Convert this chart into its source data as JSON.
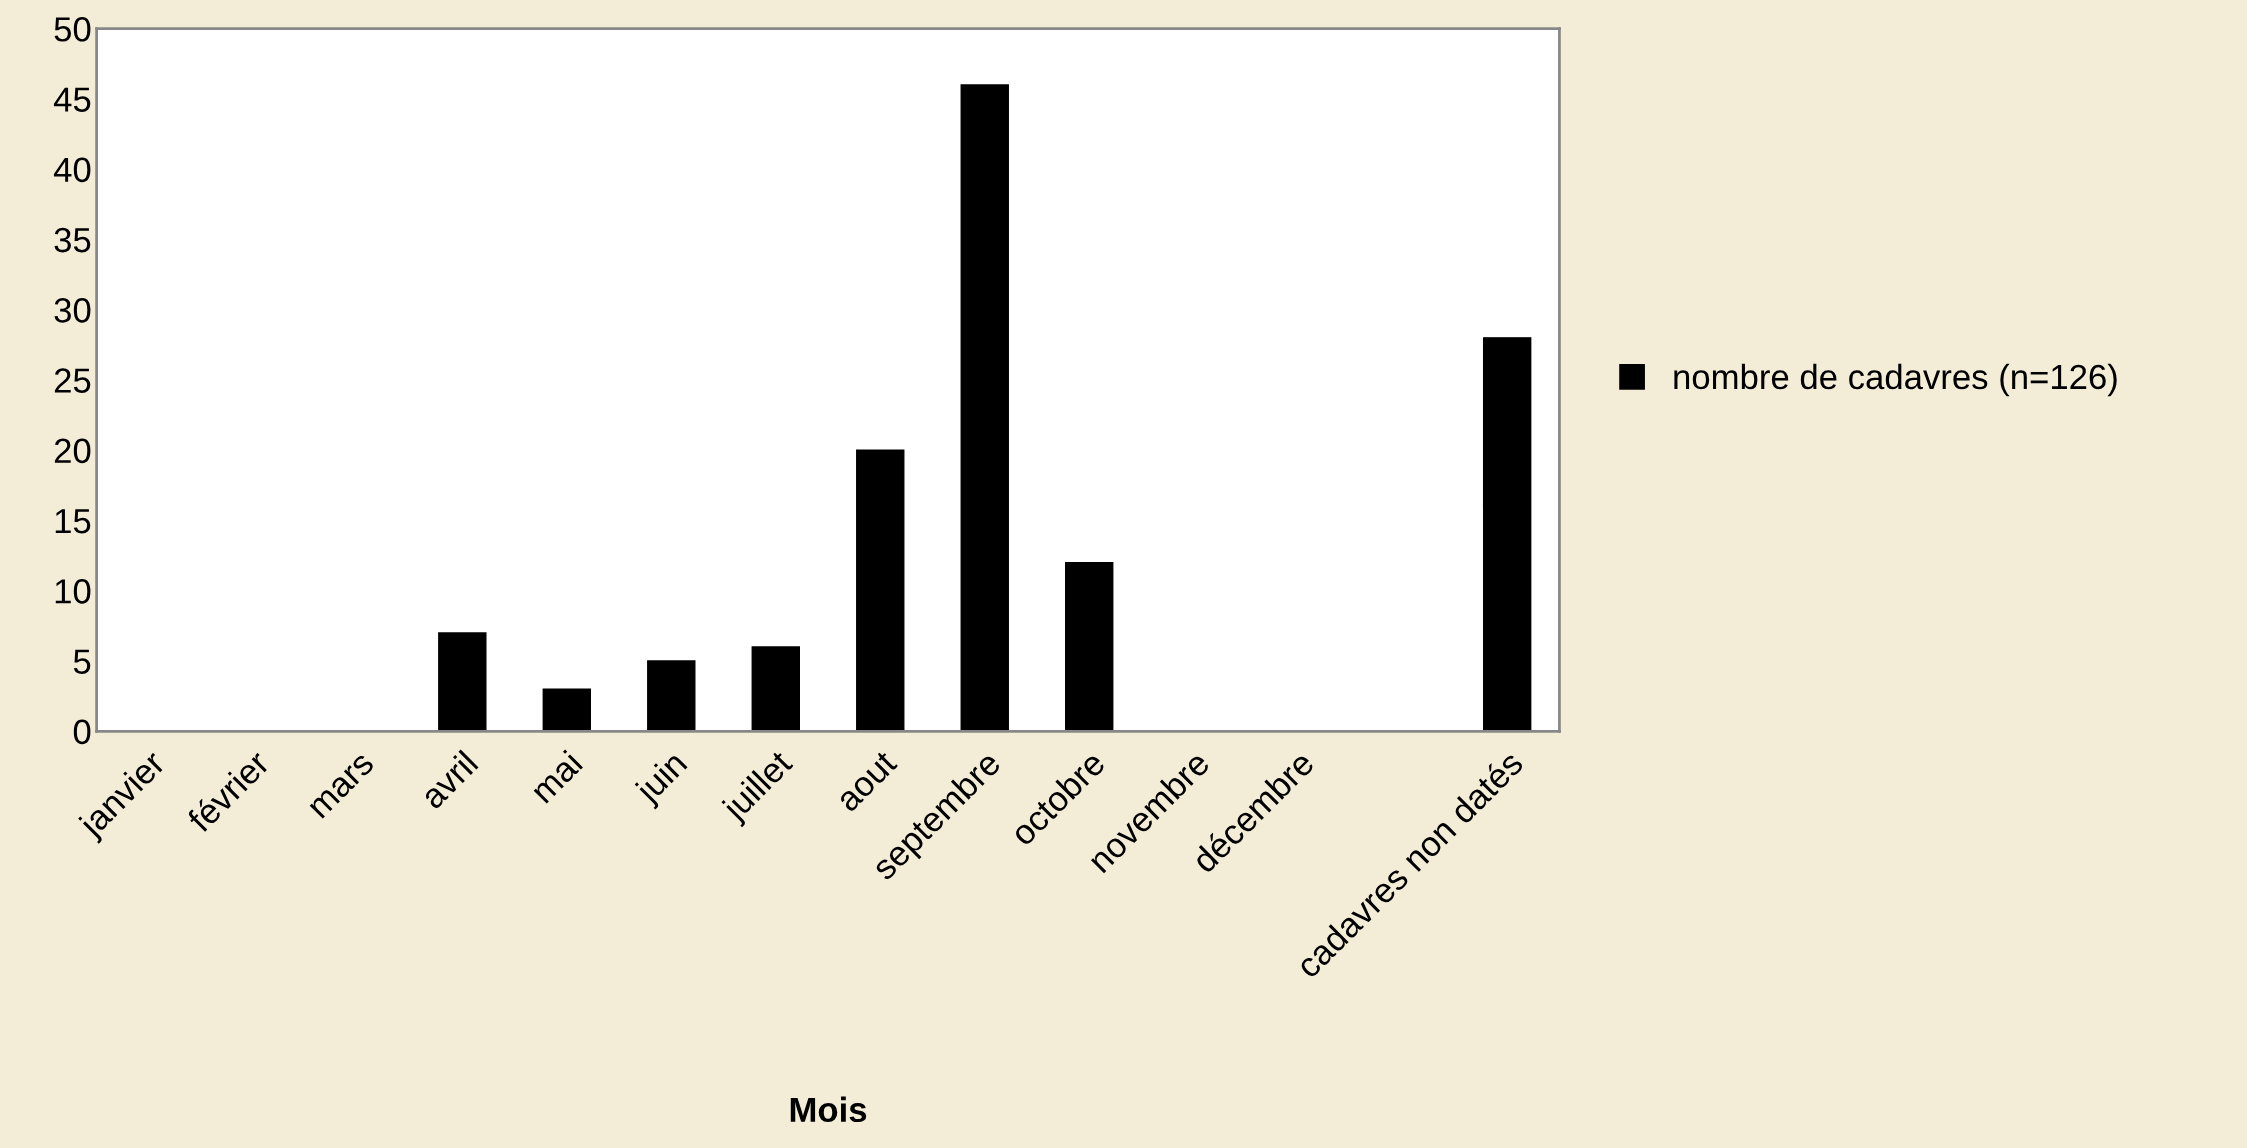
{
  "chart_data": {
    "type": "bar",
    "xlabel": "Mois",
    "categories": [
      "janvier",
      "février",
      "mars",
      "avril",
      "mai",
      "juin",
      "juillet",
      "aout",
      "septembre",
      "octobre",
      "novembre",
      "décembre",
      null,
      "cadavres non datés"
    ],
    "series": [
      {
        "name": "nombre de cadavres (n=126)",
        "color": "#000000",
        "values": [
          0,
          0,
          0,
          7,
          3,
          5,
          6,
          20,
          46,
          12,
          0,
          0,
          null,
          28
        ]
      }
    ],
    "ylim": [
      0,
      50
    ],
    "yticks": [
      0,
      5,
      10,
      15,
      20,
      25,
      30,
      35,
      40,
      45,
      50
    ],
    "grid": false,
    "legend": "right"
  }
}
